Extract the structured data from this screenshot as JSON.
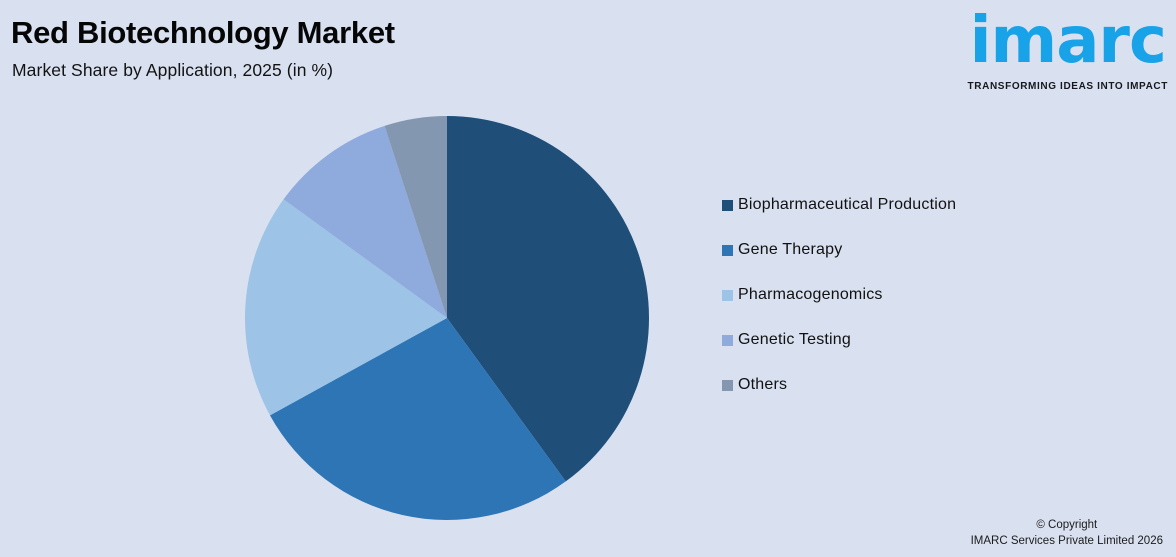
{
  "page": {
    "background_color": "#d9e1f1"
  },
  "header": {
    "title": "Red Biotechnology Market",
    "subtitle": "Market Share by Application, 2025 (in %)"
  },
  "logo": {
    "text": "imarc",
    "tagline": "TRANSFORMING IDEAS INTO IMPACT",
    "text_color": "#18a2e8",
    "tagline_color": "#17181c"
  },
  "chart_data": {
    "type": "pie",
    "title": "Red Biotechnology Market",
    "subtitle": "Market Share by Application, 2025 (in %)",
    "categories": [
      "Biopharmaceutical Production",
      "Gene Therapy",
      "Pharmacogenomics",
      "Genetic Testing",
      "Others"
    ],
    "values": [
      40,
      27,
      18,
      10,
      5
    ],
    "unit": "%",
    "colors": [
      "#1f4e79",
      "#2e75b6",
      "#9dc3e6",
      "#8faadc",
      "#8497b0"
    ],
    "start_angle_deg": 0,
    "direction": "clockwise",
    "legend_position": "right",
    "data_labels": false
  },
  "legend": {
    "items": [
      {
        "label": "Biopharmaceutical Production",
        "color": "#1f4e79"
      },
      {
        "label": "Gene Therapy",
        "color": "#2e75b6"
      },
      {
        "label": "Pharmacogenomics",
        "color": "#9dc3e6"
      },
      {
        "label": "Genetic Testing",
        "color": "#8faadc"
      },
      {
        "label": "Others",
        "color": "#8497b0"
      }
    ]
  },
  "footer": {
    "copyright_line1": "© Copyright",
    "copyright_line2": "IMARC Services Private Limited 2026"
  }
}
